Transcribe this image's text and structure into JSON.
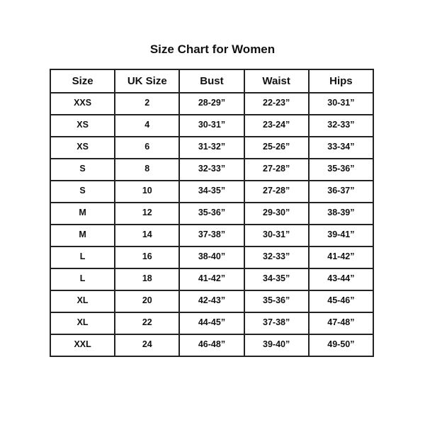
{
  "title": "Size Chart for Women",
  "headers": [
    "Size",
    "UK Size",
    "Bust",
    "Waist",
    "Hips"
  ],
  "rows": [
    [
      "XXS",
      "2",
      "28-29”",
      "22-23”",
      "30-31”"
    ],
    [
      "XS",
      "4",
      "30-31”",
      "23-24”",
      "32-33”"
    ],
    [
      "XS",
      "6",
      "31-32”",
      "25-26”",
      "33-34”"
    ],
    [
      "S",
      "8",
      "32-33”",
      "27-28”",
      "35-36”"
    ],
    [
      "S",
      "10",
      "34-35”",
      "27-28”",
      "36-37”"
    ],
    [
      "M",
      "12",
      "35-36”",
      "29-30”",
      "38-39”"
    ],
    [
      "M",
      "14",
      "37-38”",
      "30-31”",
      "39-41”"
    ],
    [
      "L",
      "16",
      "38-40”",
      "32-33”",
      "41-42”"
    ],
    [
      "L",
      "18",
      "41-42”",
      "34-35”",
      "43-44”"
    ],
    [
      "XL",
      "20",
      "42-43”",
      "35-36”",
      "45-46”"
    ],
    [
      "XL",
      "22",
      "44-45”",
      "37-38”",
      "47-48”"
    ],
    [
      "XXL",
      "24",
      "46-48”",
      "39-40”",
      "49-50”"
    ]
  ]
}
